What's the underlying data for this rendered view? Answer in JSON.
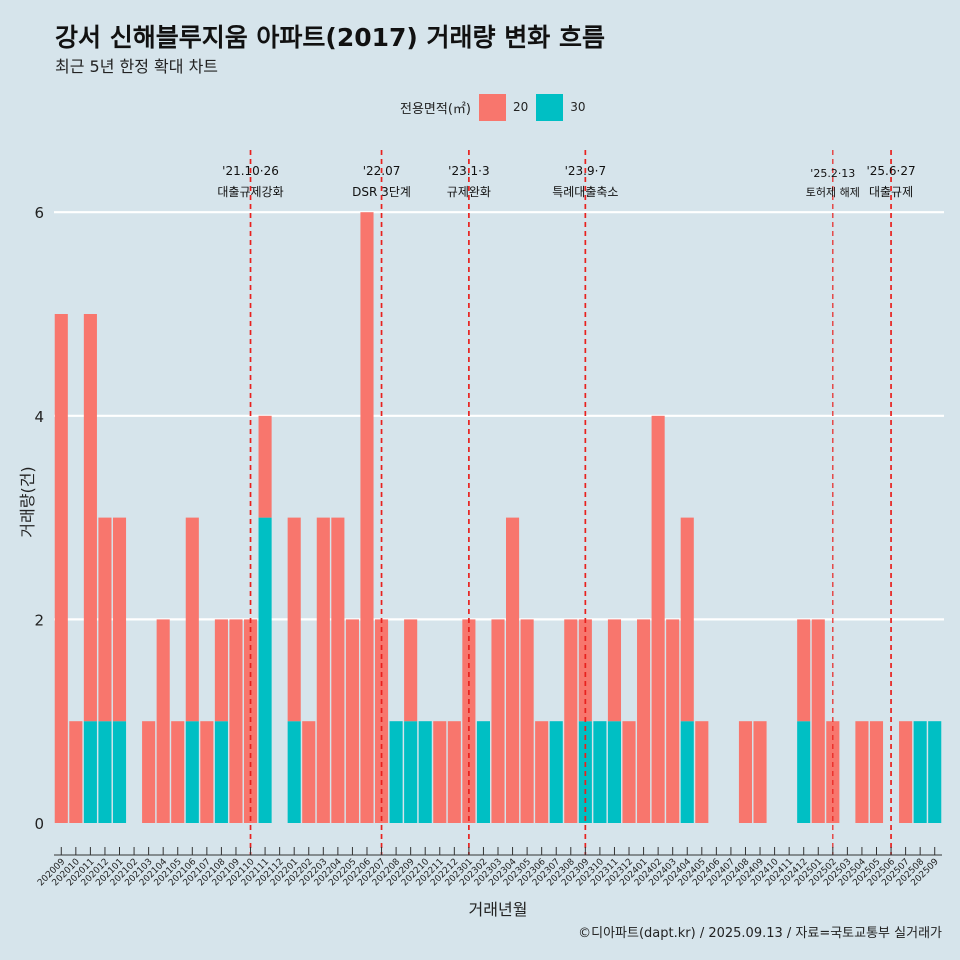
{
  "chart_data": {
    "type": "bar",
    "title": "강서 신해블루지움 아파트(2017) 거래량 변화 흐름",
    "subtitle": "최근 5년 한정 확대 차트",
    "xlabel": "거래년월",
    "ylabel": "거래량(건)",
    "ylim": [
      -0.3,
      6.6
    ],
    "yticks": [
      0,
      2,
      4,
      6
    ],
    "legend": {
      "title": "전용면적(㎡)",
      "position": "top",
      "entries": [
        "20",
        "30"
      ]
    },
    "colors": {
      "20": "#f8766d",
      "30": "#00bfc4"
    },
    "caption": "©디아파트(dapt.kr) / 2025.09.13 / 자료=국토교통부 실거래가",
    "categories": [
      "202009",
      "202010",
      "202011",
      "202012",
      "202101",
      "202102",
      "202103",
      "202104",
      "202105",
      "202106",
      "202107",
      "202108",
      "202109",
      "202110",
      "202111",
      "202112",
      "202201",
      "202202",
      "202203",
      "202204",
      "202205",
      "202206",
      "202207",
      "202208",
      "202209",
      "202210",
      "202211",
      "202212",
      "202301",
      "202302",
      "202303",
      "202304",
      "202305",
      "202306",
      "202307",
      "202308",
      "202309",
      "202310",
      "202311",
      "202312",
      "202401",
      "202402",
      "202403",
      "202404",
      "202405",
      "202406",
      "202407",
      "202408",
      "202409",
      "202410",
      "202411",
      "202412",
      "202501",
      "202502",
      "202503",
      "202504",
      "202505",
      "202506",
      "202507",
      "202508",
      "202509"
    ],
    "series": [
      {
        "name": "20",
        "values": [
          5,
          1,
          4,
          2,
          2,
          0,
          1,
          2,
          1,
          2,
          1,
          1,
          2,
          2,
          1,
          0,
          2,
          1,
          3,
          3,
          2,
          6,
          2,
          0,
          1,
          0,
          1,
          1,
          2,
          0,
          2,
          3,
          2,
          1,
          0,
          2,
          1,
          0,
          1,
          1,
          2,
          4,
          2,
          2,
          1,
          0,
          0,
          1,
          1,
          0,
          0,
          1,
          2,
          1,
          0,
          1,
          1,
          0,
          1,
          0,
          0
        ]
      },
      {
        "name": "30",
        "values": [
          0,
          0,
          1,
          1,
          1,
          0,
          0,
          0,
          0,
          1,
          0,
          1,
          0,
          0,
          3,
          0,
          1,
          0,
          0,
          0,
          0,
          0,
          0,
          1,
          1,
          1,
          0,
          0,
          0,
          1,
          0,
          0,
          0,
          0,
          1,
          0,
          1,
          1,
          1,
          0,
          0,
          0,
          0,
          1,
          0,
          0,
          0,
          0,
          0,
          0,
          0,
          1,
          0,
          0,
          0,
          0,
          0,
          0,
          0,
          1,
          1
        ]
      }
    ],
    "events": [
      {
        "x": "202110",
        "date": "'21.10·26",
        "label": "대출규제강화"
      },
      {
        "x": "202207",
        "date": "'22.07",
        "label": "DSR 3단계"
      },
      {
        "x": "202301",
        "date": "'23.1·3",
        "label": "규제완화"
      },
      {
        "x": "202309",
        "date": "'23.9·7",
        "label": "특례대출축소"
      },
      {
        "x": "202502",
        "date": "'25.2·13",
        "label": "토허제 해제"
      },
      {
        "x": "202506",
        "date": "'25.6·27",
        "label": "대출규제"
      }
    ]
  }
}
